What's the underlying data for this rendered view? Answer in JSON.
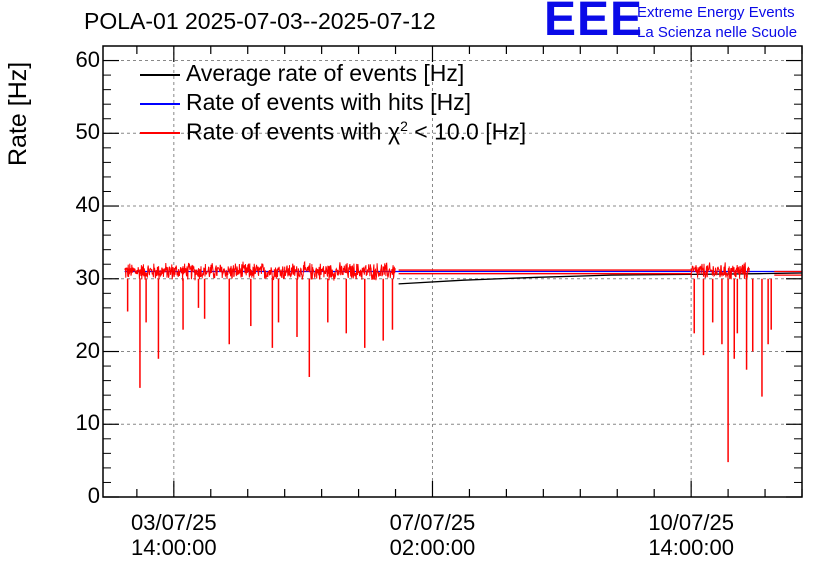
{
  "chart_data": {
    "type": "line",
    "title": "POLA-01 2025-07-03--2025-07-12",
    "ylabel": "Rate [Hz]",
    "xlabel": "",
    "ylim": [
      0,
      62
    ],
    "xlim": [
      "2025-07-02 15:00",
      "2025-07-12 02:00"
    ],
    "yticks": [
      0,
      10,
      20,
      30,
      40,
      50,
      60
    ],
    "xticks": [
      {
        "x": "2025-07-03 14:00",
        "label_date": "03/07/25",
        "label_time": "14:00:00"
      },
      {
        "x": "2025-07-07 02:00",
        "label_date": "07/07/25",
        "label_time": "02:00:00"
      },
      {
        "x": "2025-07-10 14:00",
        "label_date": "10/07/25",
        "label_time": "14:00:00"
      }
    ],
    "grid": true,
    "legend_position": "top-left",
    "series": [
      {
        "name": "Average rate of events [Hz]",
        "color": "#000000",
        "x": [
          "2025-07-06 15:00",
          "2025-07-07 12:00",
          "2025-07-08 12:00",
          "2025-07-09 12:00",
          "2025-07-10 14:00",
          "2025-07-11 12:00",
          "2025-07-12 02:00"
        ],
        "y": [
          29.3,
          29.8,
          30.2,
          30.5,
          30.6,
          30.7,
          30.8
        ]
      },
      {
        "name": "Rate of events with hits [Hz]",
        "color": "#0000ff",
        "x": [
          "2025-07-02 22:00",
          "2025-07-06 14:00",
          "2025-07-10 14:00",
          "2025-07-12 02:00"
        ],
        "y": [
          31.0,
          31.0,
          31.0,
          31.0
        ]
      },
      {
        "name": "Rate of events with χ2 < 10.0 [Hz]",
        "name_parts": [
          "Rate of events with χ",
          "2",
          " < 10.0 [Hz]"
        ],
        "color": "#ff0000",
        "segments": [
          {
            "start": "2025-07-02 22:00",
            "end": "2025-07-06 14:00",
            "baseline": 31.0,
            "noise": 1.0,
            "dips": [
              {
                "x": "2025-07-02 23:00",
                "y": 25.5
              },
              {
                "x": "2025-07-03 03:00",
                "y": 15.0
              },
              {
                "x": "2025-07-03 05:00",
                "y": 24.0
              },
              {
                "x": "2025-07-03 09:00",
                "y": 19.0
              },
              {
                "x": "2025-07-03 17:00",
                "y": 23.0
              },
              {
                "x": "2025-07-03 22:00",
                "y": 26.0
              },
              {
                "x": "2025-07-04 00:00",
                "y": 24.5
              },
              {
                "x": "2025-07-04 08:00",
                "y": 21.0
              },
              {
                "x": "2025-07-04 15:00",
                "y": 23.5
              },
              {
                "x": "2025-07-04 22:00",
                "y": 20.5
              },
              {
                "x": "2025-07-05 00:00",
                "y": 24.0
              },
              {
                "x": "2025-07-05 06:00",
                "y": 22.0
              },
              {
                "x": "2025-07-05 10:00",
                "y": 16.5
              },
              {
                "x": "2025-07-05 16:00",
                "y": 24.0
              },
              {
                "x": "2025-07-05 22:00",
                "y": 22.5
              },
              {
                "x": "2025-07-06 04:00",
                "y": 20.5
              },
              {
                "x": "2025-07-06 10:00",
                "y": 21.5
              },
              {
                "x": "2025-07-06 13:00",
                "y": 23.0
              }
            ]
          },
          {
            "start": "2025-07-06 15:00",
            "end": "2025-07-10 14:00",
            "flat": [
              31.2,
              30.7
            ]
          },
          {
            "start": "2025-07-10 14:00",
            "end": "2025-07-11 09:00",
            "baseline": 31.0,
            "noise": 1.0,
            "dips": [
              {
                "x": "2025-07-10 15:00",
                "y": 22.5
              },
              {
                "x": "2025-07-10 18:00",
                "y": 19.5
              },
              {
                "x": "2025-07-10 21:00",
                "y": 24.0
              },
              {
                "x": "2025-07-11 00:00",
                "y": 21.0
              },
              {
                "x": "2025-07-11 02:00",
                "y": 4.8
              },
              {
                "x": "2025-07-11 04:00",
                "y": 19.0
              },
              {
                "x": "2025-07-11 05:00",
                "y": 22.5
              },
              {
                "x": "2025-07-11 08:00",
                "y": 17.5
              },
              {
                "x": "2025-07-11 10:00",
                "y": 20.0
              },
              {
                "x": "2025-07-11 13:00",
                "y": 13.8
              },
              {
                "x": "2025-07-11 15:00",
                "y": 21.0
              },
              {
                "x": "2025-07-11 16:00",
                "y": 23.0
              }
            ]
          },
          {
            "start": "2025-07-11 17:00",
            "end": "2025-07-12 02:00",
            "flat": [
              31.0,
              30.5
            ]
          }
        ]
      }
    ]
  },
  "logo": {
    "mark": "EEE",
    "line1": "Extreme Energy Events",
    "line2": "La Scienza nelle Scuole"
  }
}
